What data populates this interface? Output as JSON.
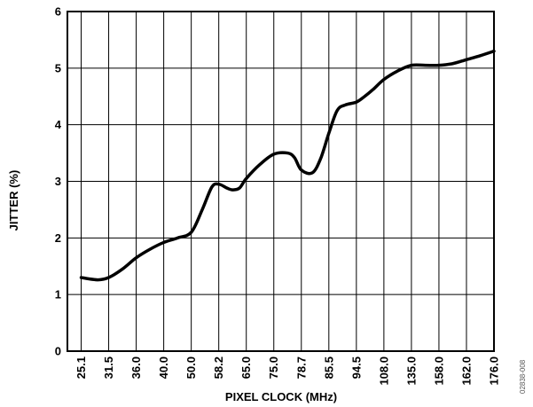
{
  "chart_data": {
    "type": "line",
    "xlabel": "PIXEL CLOCK (MHz)",
    "ylabel": "JITTER (%)",
    "figure_id": "02838-008",
    "categories": [
      "25.1",
      "31.5",
      "36.0",
      "40.0",
      "50.0",
      "58.2",
      "65.0",
      "75.0",
      "78.7",
      "85.5",
      "94.5",
      "108.0",
      "135.0",
      "158.0",
      "162.0",
      "176.0"
    ],
    "ylim": [
      0,
      6
    ],
    "yticks": [
      "0",
      "1",
      "2",
      "3",
      "4",
      "5",
      "6"
    ],
    "grid": true,
    "series": [
      {
        "x": [
          0,
          0.6,
          1,
          1.5,
          2,
          2.5,
          3,
          3.5,
          4,
          4.4,
          4.75,
          5,
          5.3,
          5.5,
          5.75,
          6,
          6.5,
          7,
          7.5,
          7.75,
          8,
          8.4,
          8.7,
          9,
          9.3,
          9.6,
          10,
          10.3,
          10.6,
          11,
          11.5,
          12,
          12.5,
          13,
          13.5,
          14,
          14.5,
          15
        ],
        "y": [
          1.3,
          1.26,
          1.3,
          1.45,
          1.65,
          1.8,
          1.92,
          2.0,
          2.1,
          2.5,
          2.9,
          2.95,
          2.88,
          2.85,
          2.88,
          3.05,
          3.3,
          3.48,
          3.5,
          3.42,
          3.2,
          3.15,
          3.4,
          3.85,
          4.25,
          4.35,
          4.4,
          4.5,
          4.62,
          4.8,
          4.95,
          5.05,
          5.05,
          5.05,
          5.08,
          5.15,
          5.22,
          5.3
        ]
      }
    ]
  }
}
